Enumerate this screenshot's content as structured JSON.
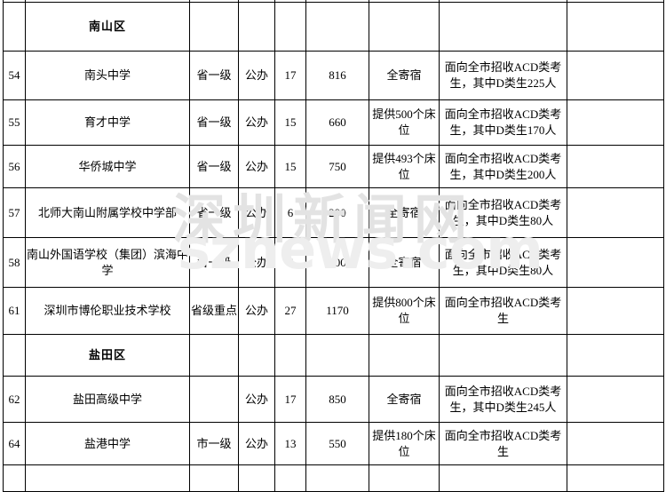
{
  "watermark": {
    "line1": "深圳新闻网",
    "line2": "sznews.com"
  },
  "colors": {
    "border": "#000000",
    "text": "#000000",
    "background": "#ffffff",
    "watermark_cn": "#e3e3e3",
    "watermark_en": "#eeeeee"
  },
  "table": {
    "rows": [
      {
        "type": "section",
        "name": "南山区"
      },
      {
        "type": "school",
        "no": "54",
        "name": "南头中学",
        "grade": "省一级",
        "ownership": "公办",
        "classes": "17",
        "students": "816",
        "accommodation": "全寄宿",
        "admission": "面向全市招收ACD类考生，其中D类生225人",
        "extra": ""
      },
      {
        "type": "school",
        "no": "55",
        "name": "育才中学",
        "grade": "省一级",
        "ownership": "公办",
        "classes": "15",
        "students": "660",
        "accommodation": "提供500个床位",
        "admission": "面向全市招收ACD类考生，其中D类生170人",
        "extra": ""
      },
      {
        "type": "school",
        "no": "56",
        "name": "华侨城中学",
        "grade": "省一级",
        "ownership": "公办",
        "classes": "15",
        "students": "750",
        "accommodation": "提供493个床位",
        "admission": "面向全市招收ACD类考生，其中D类生200人",
        "extra": ""
      },
      {
        "type": "school",
        "no": "57",
        "name": "北师大南山附属学校中学部",
        "grade": "省一级",
        "ownership": "公办",
        "classes": "6",
        "students": "290",
        "accommodation": "全寄宿",
        "admission": "面向全市招收ACD类考生，其中D类生80人",
        "extra": ""
      },
      {
        "type": "school",
        "no": "58",
        "name": "南山外国语学校（集团）滨海中学",
        "grade": "省一级",
        "ownership": "公办",
        "classes": "6",
        "students": "300",
        "accommodation": "全寄宿",
        "admission": "面向全市招收ACD类考生，其中D类生80人",
        "extra": ""
      },
      {
        "type": "school",
        "no": "61",
        "name": "深圳市博伦职业技术学校",
        "grade": "省级重点",
        "ownership": "公办",
        "classes": "27",
        "students": "1170",
        "accommodation": "提供800个床位",
        "admission": "面向全市招收ACD类考生",
        "extra": ""
      },
      {
        "type": "section",
        "name": "盐田区"
      },
      {
        "type": "school",
        "no": "62",
        "name": "盐田高级中学",
        "grade": "",
        "ownership": "公办",
        "classes": "17",
        "students": "850",
        "accommodation": "全寄宿",
        "admission": "面向全市招收ACD类考生，其中D类生245人",
        "extra": ""
      },
      {
        "type": "school",
        "no": "64",
        "name": "盐港中学",
        "grade": "市一级",
        "ownership": "公办",
        "classes": "13",
        "students": "550",
        "accommodation": "提供180个床位",
        "admission": "面向全市招收ACD类考生",
        "extra": ""
      }
    ]
  }
}
